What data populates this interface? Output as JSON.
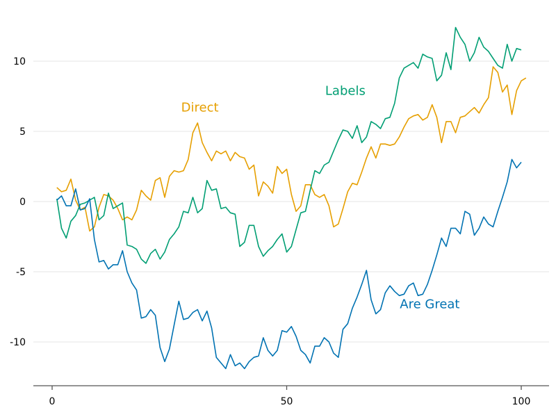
{
  "chart_data": {
    "type": "line",
    "title": "",
    "xlabel": "",
    "ylabel": "",
    "xlim": [
      -4,
      105
    ],
    "ylim": [
      -13,
      13
    ],
    "grid": "horizontal",
    "legend": "none",
    "x_ticks": [
      {
        "value": 0,
        "label": "0"
      },
      {
        "value": 50,
        "label": "50"
      },
      {
        "value": 100,
        "label": "100"
      }
    ],
    "y_ticks": [
      {
        "value": 10,
        "label": "10"
      },
      {
        "value": 5,
        "label": "5"
      },
      {
        "value": 0,
        "label": "0"
      },
      {
        "value": -5,
        "label": "-5"
      },
      {
        "value": -10,
        "label": "-10"
      }
    ],
    "series": [
      {
        "name": "Direct",
        "color": "#E69F00",
        "label_anchor": [
          31.5,
          6.7
        ],
        "values": [
          1.0,
          0.7,
          0.8,
          1.6,
          0.1,
          -0.6,
          -0.4,
          -2.1,
          -1.8,
          -0.4,
          0.5,
          0.4,
          0.1,
          -0.5,
          -1.3,
          -1.1,
          -1.3,
          -0.6,
          0.8,
          0.4,
          0.1,
          1.5,
          1.7,
          0.3,
          1.8,
          2.2,
          2.1,
          2.2,
          3.0,
          4.9,
          5.6,
          4.2,
          3.5,
          2.9,
          3.6,
          3.4,
          3.6,
          2.9,
          3.5,
          3.2,
          3.1,
          2.3,
          2.6,
          0.4,
          1.4,
          1.1,
          0.6,
          2.5,
          2.0,
          2.3,
          0.5,
          -0.7,
          -0.3,
          1.2,
          1.2,
          0.5,
          0.3,
          0.5,
          -0.3,
          -1.8,
          -1.6,
          -0.5,
          0.7,
          1.3,
          1.2,
          2.1,
          3.1,
          3.9,
          3.1,
          4.1,
          4.1,
          4.0,
          4.1,
          4.6,
          5.3,
          5.9,
          6.1,
          6.2,
          5.8,
          6.0,
          6.9,
          6.0,
          4.2,
          5.7,
          5.7,
          4.9,
          6.0,
          6.1,
          6.4,
          6.7,
          6.3,
          6.9,
          7.4,
          9.6,
          9.2,
          7.8,
          8.3,
          6.2,
          7.9,
          8.6,
          8.8
        ]
      },
      {
        "name": "Labels",
        "color": "#009E73",
        "label_anchor": [
          62.5,
          7.9
        ],
        "values": [
          0.2,
          -1.9,
          -2.6,
          -1.4,
          -1.0,
          -0.2,
          -0.1,
          0.1,
          0.3,
          -1.3,
          -1.0,
          0.6,
          -0.5,
          -0.3,
          -0.1,
          -3.1,
          -3.2,
          -3.4,
          -4.1,
          -4.4,
          -3.7,
          -3.4,
          -4.1,
          -3.6,
          -2.7,
          -2.3,
          -1.8,
          -0.7,
          -0.8,
          0.3,
          -0.8,
          -0.5,
          1.5,
          0.8,
          0.9,
          -0.5,
          -0.4,
          -0.8,
          -0.9,
          -3.2,
          -2.9,
          -1.7,
          -1.7,
          -3.2,
          -3.9,
          -3.5,
          -3.2,
          -2.7,
          -2.3,
          -3.6,
          -3.2,
          -2.0,
          -0.8,
          -0.7,
          0.8,
          2.2,
          2.0,
          2.6,
          2.8,
          3.6,
          4.4,
          5.1,
          5.0,
          4.5,
          5.4,
          4.2,
          4.6,
          5.7,
          5.5,
          5.2,
          5.9,
          6.0,
          7.0,
          8.8,
          9.5,
          9.7,
          9.9,
          9.5,
          10.5,
          10.3,
          10.2,
          8.6,
          9.0,
          10.6,
          9.4,
          12.4,
          11.7,
          11.2,
          10.0,
          10.6,
          11.7,
          11.0,
          10.7,
          10.2,
          9.7,
          9.5,
          11.2,
          10.0,
          10.9,
          10.8
        ]
      },
      {
        "name": "Are Great",
        "color": "#0072B2",
        "label_anchor": [
          80.5,
          -7.3
        ],
        "values": [
          0.1,
          0.4,
          -0.3,
          -0.3,
          0.9,
          -0.6,
          -0.5,
          0.2,
          -2.7,
          -4.3,
          -4.2,
          -4.8,
          -4.5,
          -4.5,
          -3.5,
          -5.0,
          -5.8,
          -6.3,
          -8.3,
          -8.2,
          -7.7,
          -8.1,
          -10.4,
          -11.4,
          -10.5,
          -8.8,
          -7.1,
          -8.4,
          -8.3,
          -7.9,
          -7.7,
          -8.5,
          -7.8,
          -9.0,
          -11.1,
          -11.5,
          -11.9,
          -10.9,
          -11.7,
          -11.5,
          -11.9,
          -11.4,
          -11.1,
          -11.0,
          -9.7,
          -10.6,
          -11.0,
          -10.6,
          -9.2,
          -9.3,
          -8.9,
          -9.6,
          -10.6,
          -10.9,
          -11.5,
          -10.3,
          -10.3,
          -9.7,
          -10.0,
          -10.8,
          -11.1,
          -9.1,
          -8.7,
          -7.6,
          -6.8,
          -5.9,
          -4.9,
          -7.0,
          -8.0,
          -7.7,
          -6.5,
          -6.0,
          -6.4,
          -6.7,
          -6.6,
          -6.0,
          -5.8,
          -6.7,
          -6.6,
          -5.9,
          -4.9,
          -3.8,
          -2.6,
          -3.2,
          -1.9,
          -1.9,
          -2.3,
          -0.7,
          -0.9,
          -2.4,
          -1.9,
          -1.1,
          -1.6,
          -1.8,
          -0.7,
          0.3,
          1.4,
          3.0,
          2.4,
          2.8
        ]
      }
    ]
  }
}
